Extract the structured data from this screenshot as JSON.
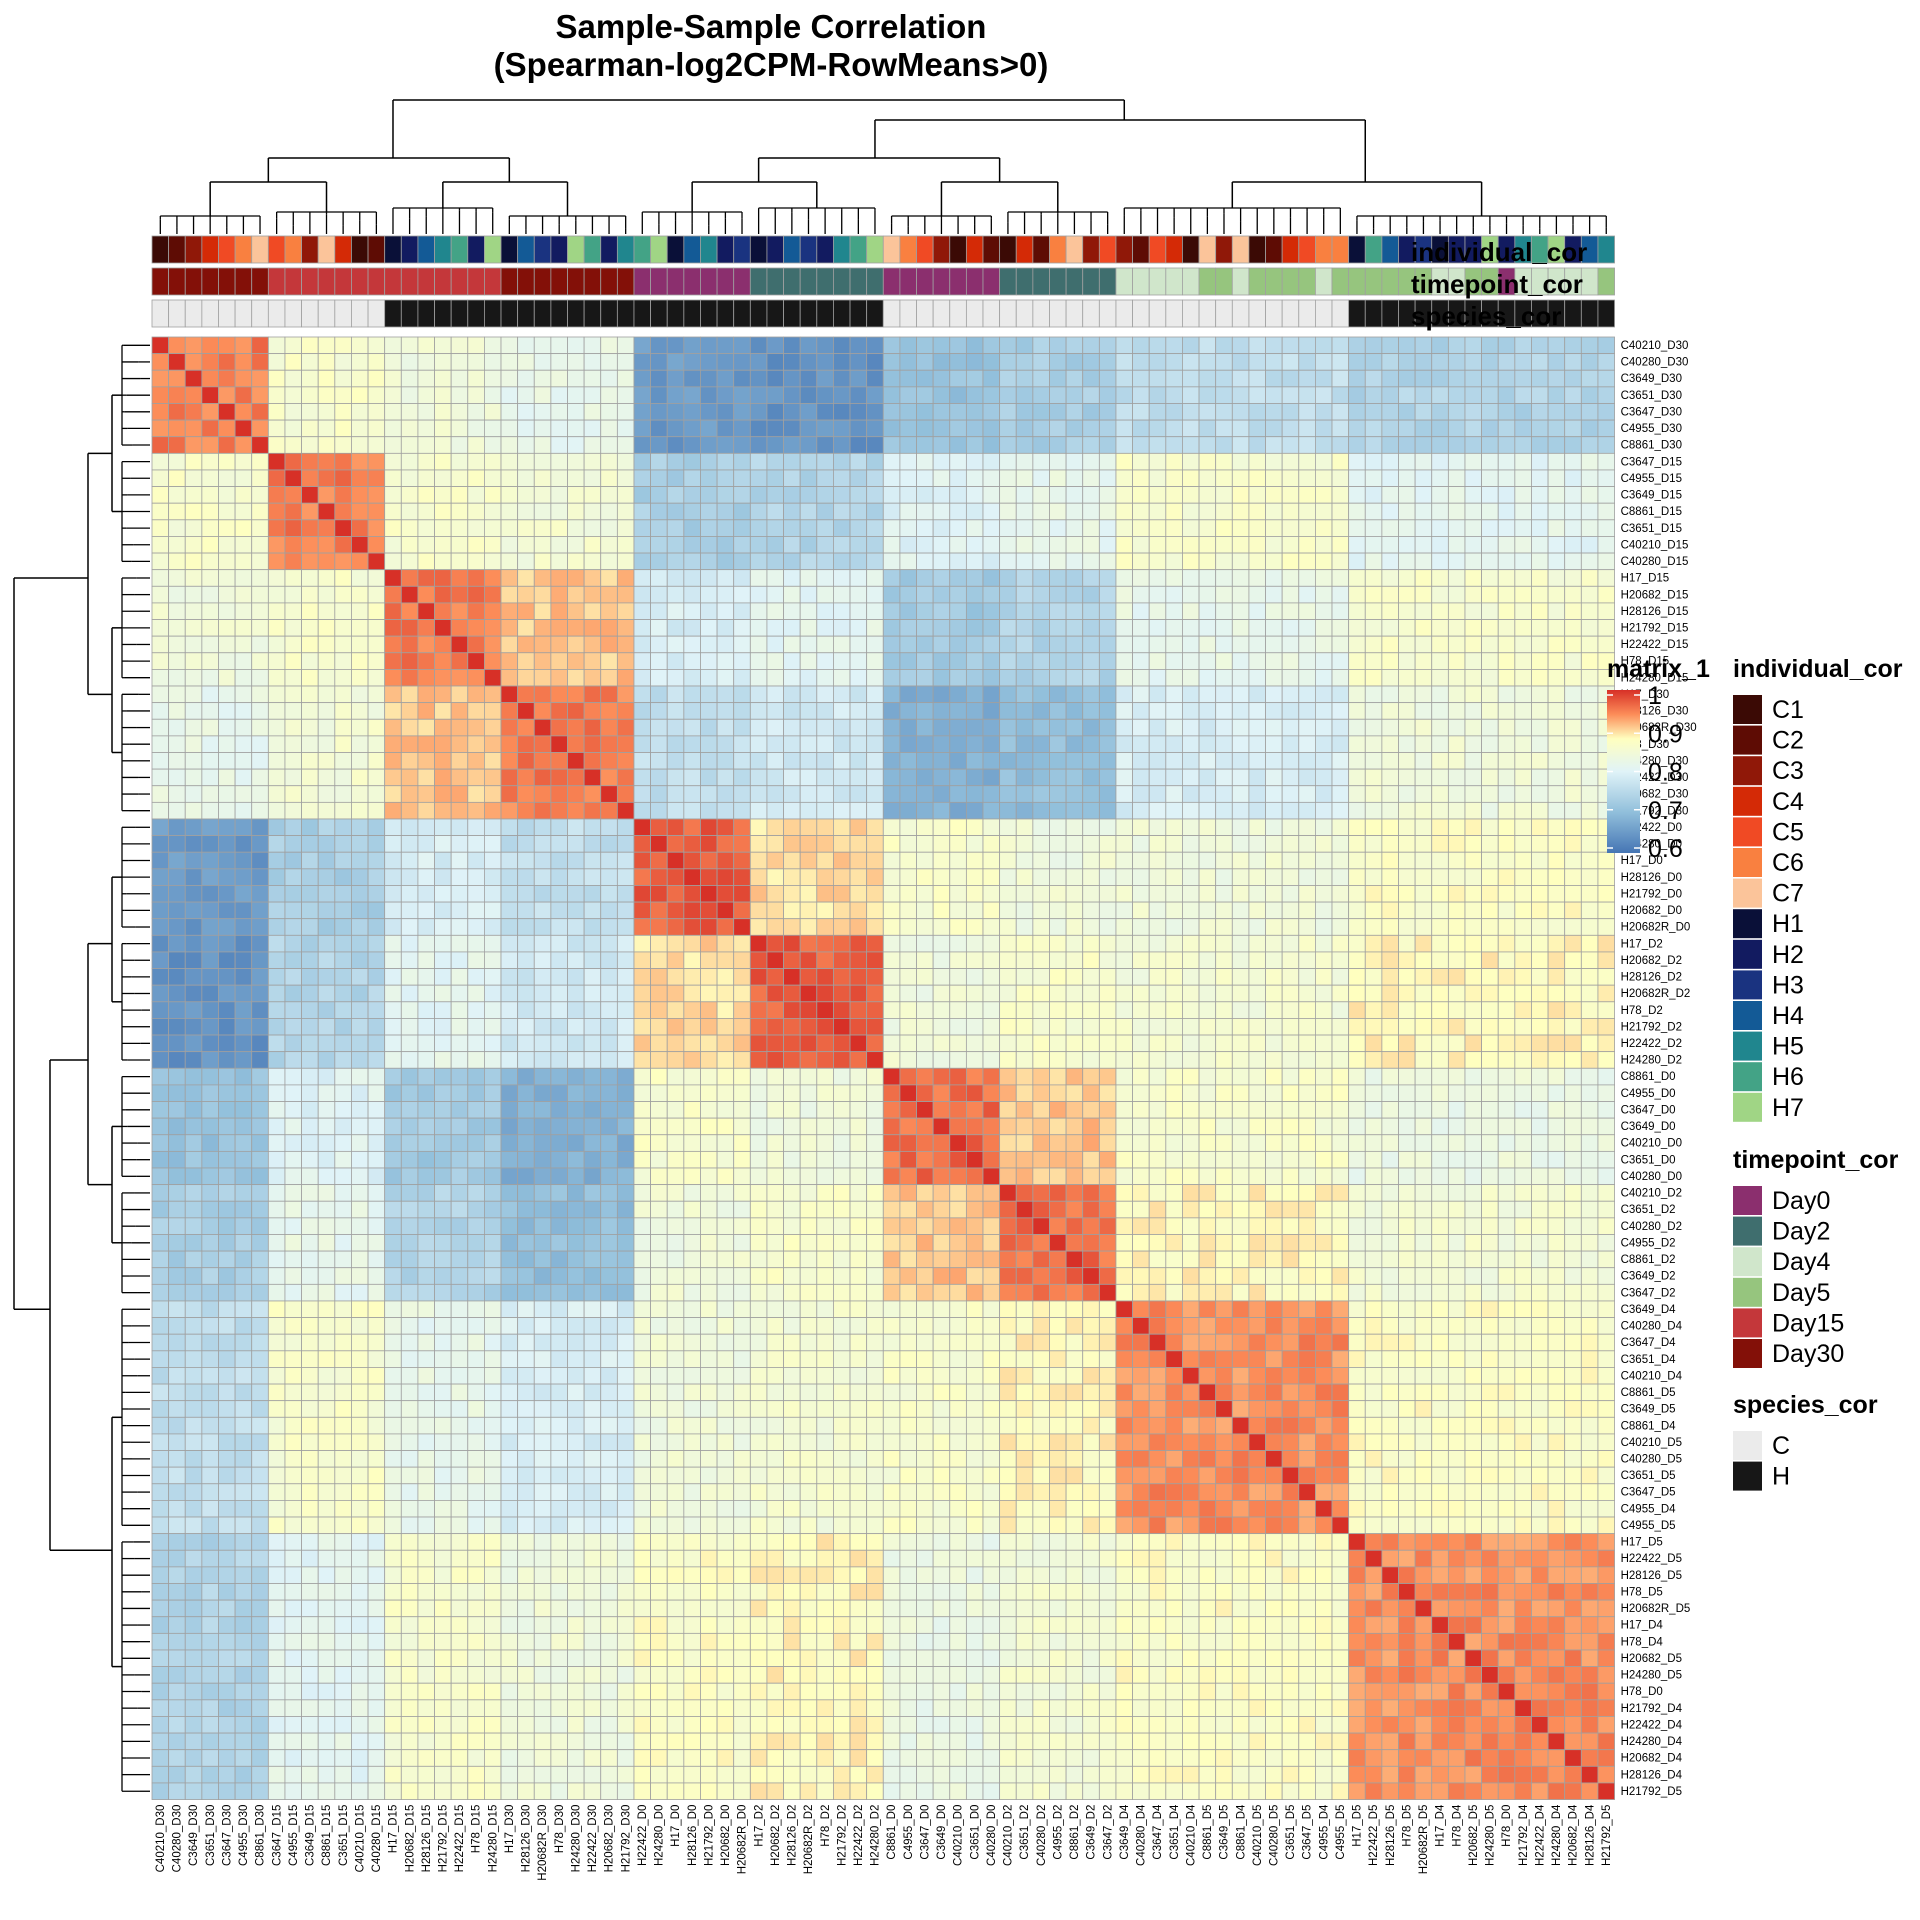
{
  "chart_data": {
    "type": "heatmap",
    "title": "Sample-Sample Correlation",
    "subtitle": "(Spearman-log2CPM-RowMeans>0)",
    "samples": [
      "C40210_D30",
      "C40280_D30",
      "C3649_D30",
      "C3651_D30",
      "C3647_D30",
      "C4955_D30",
      "C8861_D30",
      "C3647_D15",
      "C4955_D15",
      "C3649_D15",
      "C8861_D15",
      "C3651_D15",
      "C40210_D15",
      "C40280_D15",
      "H17_D15",
      "H20682_D15",
      "H28126_D15",
      "H21792_D15",
      "H22422_D15",
      "H78_D15",
      "H24280_D15",
      "H17_D30",
      "H28126_D30",
      "H20682R_D30",
      "H78_D30",
      "H24280_D30",
      "H22422_D30",
      "H20682_D30",
      "H21792_D30",
      "H22422_D0",
      "H24280_D0",
      "H17_D0",
      "H28126_D0",
      "H21792_D0",
      "H20682_D0",
      "H20682R_D0",
      "H17_D2",
      "H20682_D2",
      "H28126_D2",
      "H20682R_D2",
      "H78_D2",
      "H21792_D2",
      "H22422_D2",
      "H24280_D2",
      "C8861_D0",
      "C4955_D0",
      "C3647_D0",
      "C3649_D0",
      "C40210_D0",
      "C3651_D0",
      "C40280_D0",
      "C40210_D2",
      "C3651_D2",
      "C40280_D2",
      "C4955_D2",
      "C8861_D2",
      "C3649_D2",
      "C3647_D2",
      "C3649_D4",
      "C40280_D4",
      "C3647_D4",
      "C3651_D4",
      "C40210_D4",
      "C8861_D5",
      "C3649_D5",
      "C8861_D4",
      "C40210_D5",
      "C40280_D5",
      "C3651_D5",
      "C3647_D5",
      "C4955_D4",
      "C4955_D5",
      "H17_D5",
      "H22422_D5",
      "H28126_D5",
      "H78_D5",
      "H20682R_D5",
      "H17_D4",
      "H78_D4",
      "H20682_D5",
      "H24280_D5",
      "H78_D0",
      "H21792_D4",
      "H22422_D4",
      "H24280_D4",
      "H20682_D4",
      "H28126_D4",
      "H21792_D5"
    ],
    "groups": [
      {
        "start": 0,
        "end": 6,
        "species": "C",
        "timepoint": "Day30"
      },
      {
        "start": 7,
        "end": 13,
        "species": "C",
        "timepoint": "Day15"
      },
      {
        "start": 14,
        "end": 20,
        "species": "H",
        "timepoint": "Day15"
      },
      {
        "start": 21,
        "end": 28,
        "species": "H",
        "timepoint": "Day30"
      },
      {
        "start": 29,
        "end": 35,
        "species": "H",
        "timepoint": "Day0"
      },
      {
        "start": 36,
        "end": 43,
        "species": "H",
        "timepoint": "Day2"
      },
      {
        "start": 44,
        "end": 50,
        "species": "C",
        "timepoint": "Day0"
      },
      {
        "start": 51,
        "end": 57,
        "species": "C",
        "timepoint": "Day2"
      },
      {
        "start": 58,
        "end": 71,
        "species": "C",
        "timepoint": "Day4/5"
      },
      {
        "start": 72,
        "end": 87,
        "species": "H",
        "timepoint": "Day4/5"
      }
    ],
    "block_correlation": [
      [
        0.95,
        0.86,
        0.84,
        0.82,
        0.65,
        0.64,
        0.71,
        0.73,
        0.76,
        0.74
      ],
      [
        0.86,
        0.95,
        0.86,
        0.85,
        0.73,
        0.74,
        0.8,
        0.82,
        0.86,
        0.81
      ],
      [
        0.84,
        0.86,
        0.95,
        0.91,
        0.79,
        0.81,
        0.72,
        0.74,
        0.82,
        0.86
      ],
      [
        0.82,
        0.85,
        0.91,
        0.95,
        0.76,
        0.78,
        0.68,
        0.7,
        0.79,
        0.84
      ],
      [
        0.65,
        0.73,
        0.79,
        0.76,
        0.97,
        0.9,
        0.86,
        0.84,
        0.84,
        0.87
      ],
      [
        0.64,
        0.74,
        0.81,
        0.78,
        0.9,
        0.97,
        0.84,
        0.86,
        0.85,
        0.88
      ],
      [
        0.71,
        0.8,
        0.72,
        0.68,
        0.86,
        0.84,
        0.96,
        0.91,
        0.86,
        0.83
      ],
      [
        0.73,
        0.82,
        0.74,
        0.7,
        0.84,
        0.86,
        0.91,
        0.96,
        0.88,
        0.85
      ],
      [
        0.76,
        0.86,
        0.82,
        0.79,
        0.84,
        0.85,
        0.86,
        0.88,
        0.94,
        0.87
      ],
      [
        0.74,
        0.81,
        0.86,
        0.84,
        0.87,
        0.88,
        0.83,
        0.85,
        0.87,
        0.94
      ]
    ],
    "color_scale": {
      "name": "matrix_1",
      "breaks": [
        0.6,
        0.7,
        0.8,
        0.9,
        1
      ],
      "tick_labels": [
        "0.6",
        "0.7",
        "0.8",
        "0.9",
        "1"
      ],
      "colors": [
        "#4575b4",
        "#91bfdb",
        "#e0f3f8",
        "#ffffbf",
        "#fc8d59",
        "#d73027"
      ]
    },
    "legend_position": "right"
  },
  "annotations": {
    "track_labels": [
      "individual_cor",
      "timepoint_cor",
      "species_cor"
    ],
    "individual_cor": {
      "title": "individual_cor",
      "levels": [
        {
          "label": "C1",
          "color": "#3b0a05"
        },
        {
          "label": "C2",
          "color": "#5e0c04"
        },
        {
          "label": "C3",
          "color": "#901808"
        },
        {
          "label": "C4",
          "color": "#d42a06"
        },
        {
          "label": "C5",
          "color": "#f04a24"
        },
        {
          "label": "C6",
          "color": "#f98040"
        },
        {
          "label": "C7",
          "color": "#fbc49a"
        },
        {
          "label": "H1",
          "color": "#0a1038"
        },
        {
          "label": "H2",
          "color": "#121b60"
        },
        {
          "label": "H3",
          "color": "#1a3380"
        },
        {
          "label": "H4",
          "color": "#135a96"
        },
        {
          "label": "H5",
          "color": "#20868e"
        },
        {
          "label": "H6",
          "color": "#43a386"
        },
        {
          "label": "H7",
          "color": "#a0d585"
        }
      ]
    },
    "timepoint_cor": {
      "title": "timepoint_cor",
      "levels": [
        {
          "label": "Day0",
          "color": "#8b2f6e"
        },
        {
          "label": "Day2",
          "color": "#3f6e6e"
        },
        {
          "label": "Day4",
          "color": "#d0e6cb"
        },
        {
          "label": "Day5",
          "color": "#96c57e"
        },
        {
          "label": "Day15",
          "color": "#c4373a"
        },
        {
          "label": "Day30",
          "color": "#831008"
        }
      ]
    },
    "species_cor": {
      "title": "species_cor",
      "levels": [
        {
          "label": "C",
          "color": "#ebebeb"
        },
        {
          "label": "H",
          "color": "#171717"
        }
      ]
    }
  }
}
